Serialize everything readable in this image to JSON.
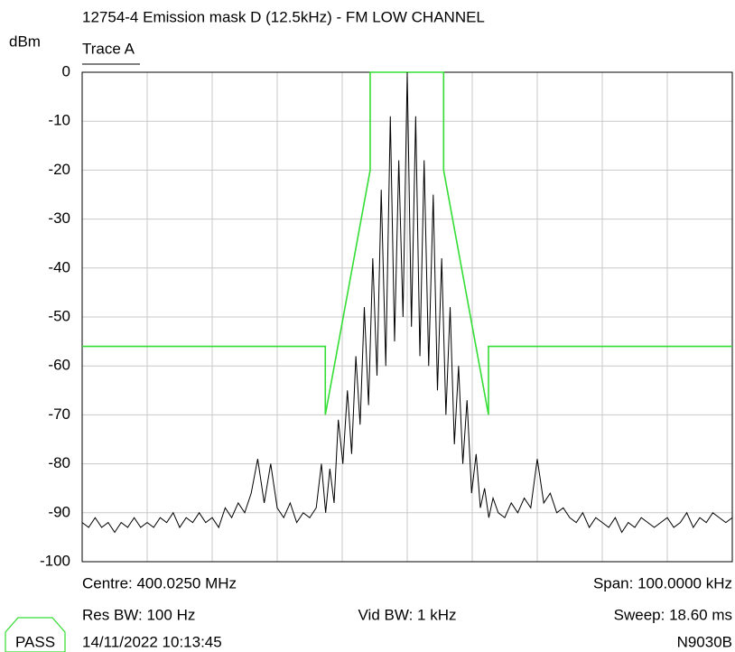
{
  "chart_data": {
    "type": "line",
    "title": "12754-4 Emission mask D (12.5kHz) - FM LOW CHANNEL",
    "y_label": "dBm",
    "xlim": [
      -50,
      50
    ],
    "xticks": [
      -50,
      -40,
      -30,
      -20,
      -10,
      0,
      10,
      20,
      30,
      40,
      50
    ],
    "ylim": [
      -100,
      0
    ],
    "yticks": [
      0,
      -10,
      -20,
      -30,
      -40,
      -50,
      -60,
      -70,
      -80,
      -90,
      -100
    ],
    "grid": true,
    "series": [
      {
        "name": "Trace A",
        "color": "#000000",
        "x": [
          -50,
          -49,
          -48,
          -47,
          -46,
          -45,
          -44,
          -43,
          -42,
          -41,
          -40,
          -39,
          -38,
          -37,
          -36,
          -35,
          -34,
          -33,
          -32,
          -31,
          -30,
          -29,
          -28,
          -27,
          -26,
          -25,
          -24,
          -23,
          -22,
          -21,
          -20,
          -19,
          -18,
          -17,
          -16,
          -15,
          -14,
          -13.2,
          -12.55,
          -11.9,
          -11.25,
          -10.6,
          -9.9,
          -9.2,
          -8.55,
          -7.9,
          -7.25,
          -6.6,
          -5.95,
          -5.3,
          -4.65,
          -4.0,
          -3.3,
          -2.6,
          -1.95,
          -1.3,
          -0.65,
          0,
          0.65,
          1.3,
          1.95,
          2.6,
          3.3,
          4.0,
          4.65,
          5.3,
          5.95,
          6.6,
          7.25,
          7.9,
          8.55,
          9.2,
          9.9,
          10.6,
          11.25,
          11.9,
          12.55,
          13.2,
          14,
          15,
          16,
          17,
          18,
          19,
          20,
          21,
          22,
          23,
          24,
          25,
          26,
          27,
          28,
          29,
          30,
          31,
          32,
          33,
          34,
          35,
          36,
          37,
          38,
          39,
          40,
          41,
          42,
          43,
          44,
          45,
          46,
          47,
          48,
          49,
          50
        ],
        "values": [
          -92,
          -93,
          -91,
          -93,
          -92,
          -94,
          -92,
          -93,
          -91,
          -93,
          -92,
          -93,
          -91,
          -92,
          -90,
          -93,
          -91,
          -92,
          -90,
          -92,
          -91,
          -93,
          -89,
          -91,
          -88,
          -90,
          -86,
          -79,
          -88,
          -80,
          -89,
          -91,
          -88,
          -92,
          -90,
          -91,
          -89,
          -80,
          -90,
          -81,
          -88,
          -71,
          -80,
          -65,
          -78,
          -58,
          -72,
          -48,
          -68,
          -38,
          -62,
          -24,
          -60,
          -9,
          -55,
          -18,
          -50,
          0,
          -52,
          -9,
          -58,
          -18,
          -60,
          -25,
          -65,
          -38,
          -70,
          -48,
          -76,
          -60,
          -80,
          -67,
          -86,
          -78,
          -89,
          -85,
          -91,
          -87,
          -90,
          -91,
          -88,
          -90,
          -87,
          -89,
          -79,
          -88,
          -86,
          -90,
          -89,
          -91,
          -92,
          -90,
          -93,
          -91,
          -92,
          -93,
          -91,
          -94,
          -92,
          -93,
          -91,
          -92,
          -93,
          -92,
          -91,
          -93,
          -92,
          -90,
          -93,
          -91,
          -92,
          -90,
          -91,
          -92,
          -91
        ]
      },
      {
        "color": "#33dd33",
        "x": [
          -50,
          -12.6,
          -12.6,
          -5.7,
          -5.7,
          5.6,
          5.6,
          12.5,
          12.5,
          50
        ],
        "values": [
          -56,
          -56,
          -70,
          -20,
          0,
          0,
          -20,
          -70,
          -56,
          -56
        ]
      }
    ],
    "annotations": {
      "centre": "Centre: 400.0250 MHz",
      "span": "Span: 100.0000 kHz",
      "res_bw": "Res BW: 100 Hz",
      "vid_bw": "Vid BW: 1 kHz",
      "sweep": "Sweep: 18.60 ms",
      "timestamp": "14/11/2022 10:13:45",
      "instrument": "N9030B",
      "status": "PASS"
    }
  }
}
